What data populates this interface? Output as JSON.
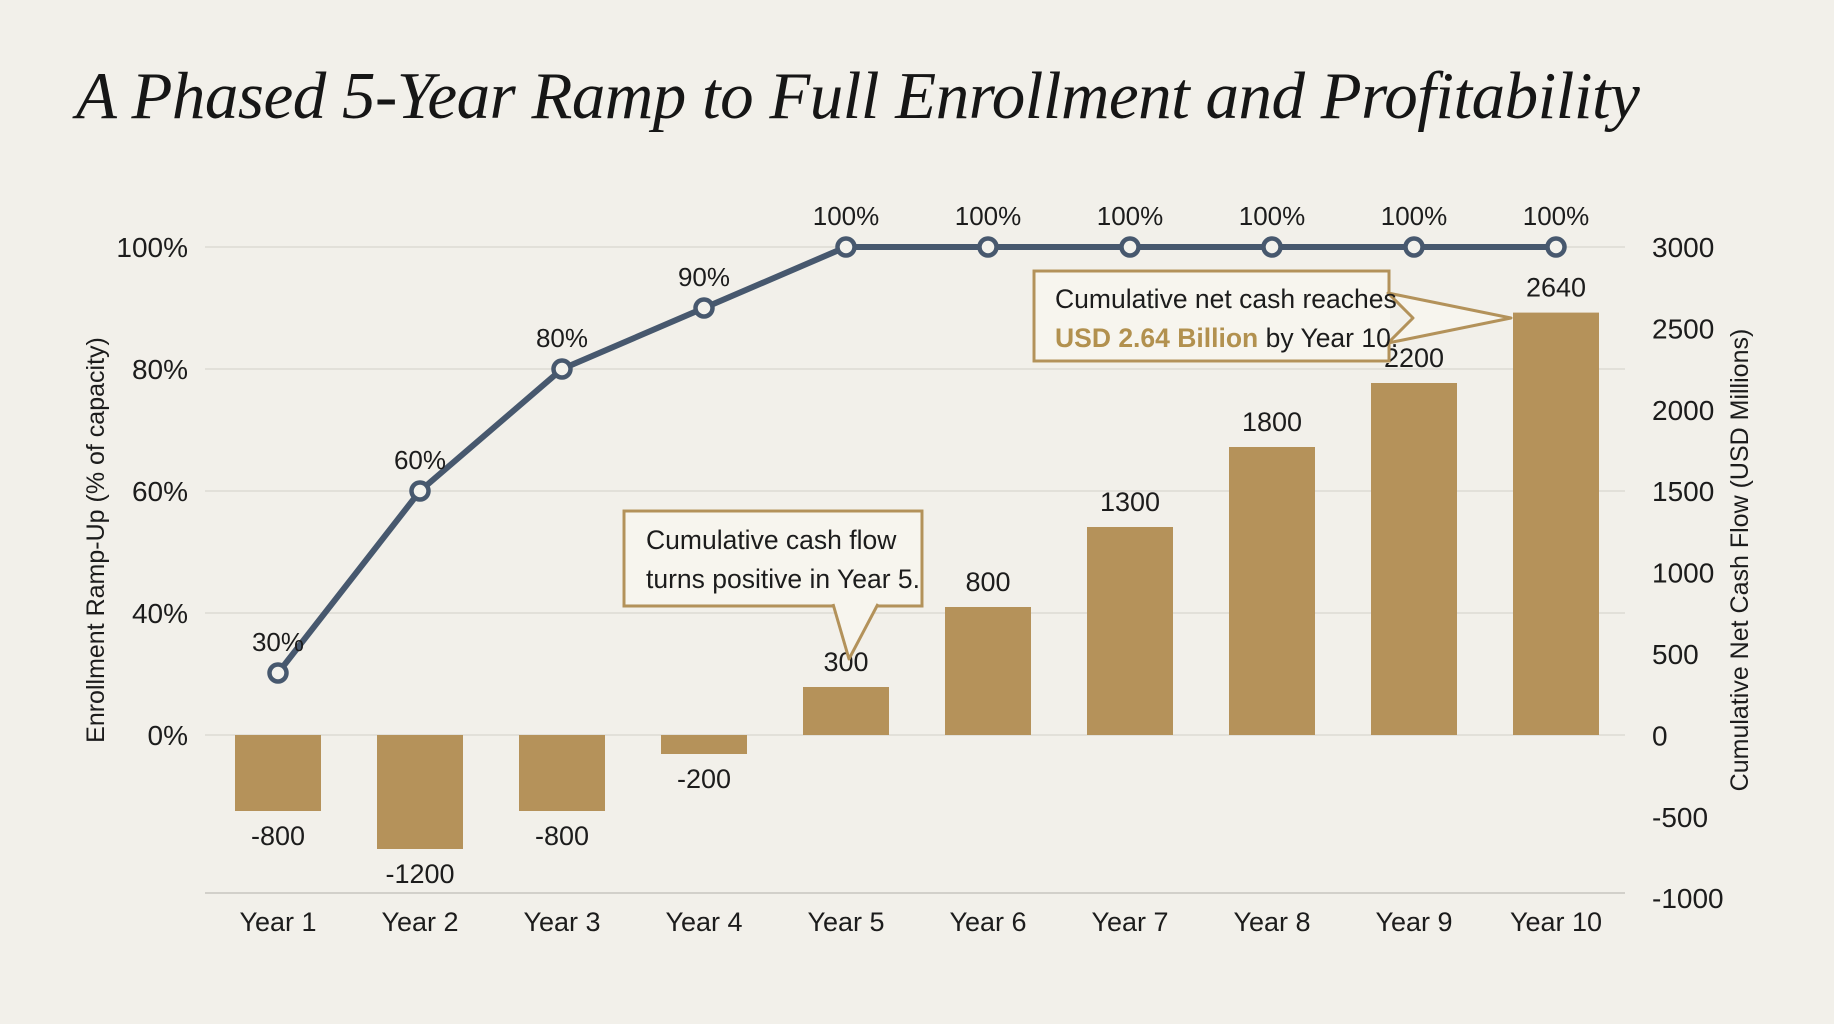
{
  "title": "A Phased 5-Year Ramp to Full Enrollment and Profitability",
  "chart_data": {
    "type": "bar",
    "title": "A Phased 5-Year Ramp to Full Enrollment and Profitability",
    "categories": [
      "Year 1",
      "Year 2",
      "Year 3",
      "Year 4",
      "Year 5",
      "Year 6",
      "Year 7",
      "Year 8",
      "Year 9",
      "Year 10"
    ],
    "series": [
      {
        "name": "Cumulative Net Cash Flow (USD Millions)",
        "type": "bar",
        "axis": "right",
        "values": [
          -800,
          -1200,
          -800,
          -200,
          300,
          800,
          1300,
          1800,
          2200,
          2640
        ],
        "data_labels": [
          "-800",
          "-1200",
          "-800",
          "-200",
          "300",
          "800",
          "1300",
          "1800",
          "2200",
          "2640"
        ]
      },
      {
        "name": "Enrollment Ramp-Up (% of capacity)",
        "type": "line",
        "axis": "left",
        "values": [
          30,
          60,
          80,
          90,
          100,
          100,
          100,
          100,
          100,
          100
        ],
        "data_labels": [
          "30%",
          "60%",
          "80%",
          "90%",
          "100%",
          "100%",
          "100%",
          "100%",
          "100%",
          "100%"
        ]
      }
    ],
    "left_axis": {
      "label": "Enrollment Ramp-Up (% of capacity)",
      "tick_labels": [
        "100%",
        "80%",
        "60%",
        "40%",
        "0%"
      ],
      "tick_values": [
        100,
        80,
        60,
        40,
        0
      ]
    },
    "right_axis": {
      "label": "Cumulative Net Cash Flow (USD Millions)",
      "tick_labels": [
        "3000",
        "2500",
        "2000",
        "1500",
        "1000",
        "500",
        "0",
        "-500",
        "-1000"
      ],
      "tick_values": [
        3000,
        2500,
        2000,
        1500,
        1000,
        500,
        0,
        -500,
        -1000
      ],
      "range": [
        -1000,
        3000
      ]
    },
    "grid": true,
    "legend": "none",
    "annotations": [
      {
        "id": "cashflow-positive-callout",
        "lines": [
          "Cumulative cash flow",
          "turns positive in Year 5."
        ],
        "target": "Year 5"
      },
      {
        "id": "cumulative-total-callout",
        "line1": "Cumulative net cash reaches",
        "line2_highlight": "USD 2.64 Billion",
        "line2_rest": " by Year 10.",
        "target": "Year 10"
      }
    ]
  },
  "colors": {
    "background": "#f2f0ea",
    "bar": "#b5925a",
    "line": "#47586e",
    "marker_fill": "#f3f2ed",
    "grid": "#dcdad3",
    "axis_line": "#d2d0ca",
    "text": "#1c1c1c",
    "gold": "#b2914f",
    "callout_border": "#b3925a",
    "callout_fill": "#f7f5ee"
  }
}
